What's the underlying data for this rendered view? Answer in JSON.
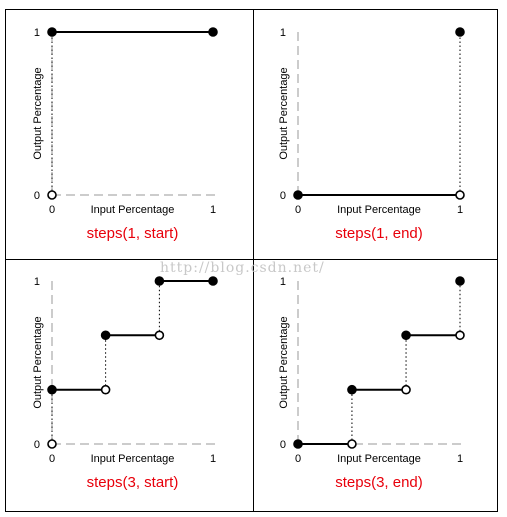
{
  "watermark": "http://blog.csdn.net/",
  "caption_color": "#e8000b",
  "panels": [
    {
      "id": "steps-1-start",
      "caption": "steps(1, start)",
      "x_label": "Input Percentage",
      "y_label": "Output Percentage",
      "x_ticks": [
        "0",
        "1"
      ],
      "y_ticks": [
        "0",
        "1"
      ],
      "segments": [
        [
          0,
          1,
          1
        ]
      ],
      "risers": [
        [
          0,
          0,
          1
        ]
      ],
      "points": [
        [
          0,
          0,
          "open"
        ],
        [
          0,
          1,
          "filled"
        ],
        [
          1,
          1,
          "filled"
        ]
      ]
    },
    {
      "id": "steps-1-end",
      "caption": "steps(1, end)",
      "x_label": "Input Percentage",
      "y_label": "Output Percentage",
      "x_ticks": [
        "0",
        "1"
      ],
      "y_ticks": [
        "0",
        "1"
      ],
      "segments": [
        [
          0,
          1,
          0
        ]
      ],
      "risers": [
        [
          1,
          0,
          1
        ]
      ],
      "points": [
        [
          0,
          0,
          "filled"
        ],
        [
          1,
          0,
          "open"
        ],
        [
          1,
          1,
          "filled"
        ]
      ]
    },
    {
      "id": "steps-3-start",
      "caption": "steps(3, start)",
      "x_label": "Input Percentage",
      "y_label": "Output Percentage",
      "x_ticks": [
        "0",
        "1"
      ],
      "y_ticks": [
        "0",
        "1"
      ],
      "segments": [
        [
          0,
          0.333,
          0.333
        ],
        [
          0.333,
          0.667,
          0.667
        ],
        [
          0.667,
          1,
          1
        ]
      ],
      "risers": [
        [
          0,
          0,
          0.333
        ],
        [
          0.333,
          0.333,
          0.667
        ],
        [
          0.667,
          0.667,
          1
        ]
      ],
      "points": [
        [
          0,
          0,
          "open"
        ],
        [
          0,
          0.333,
          "filled"
        ],
        [
          0.333,
          0.333,
          "open"
        ],
        [
          0.333,
          0.667,
          "filled"
        ],
        [
          0.667,
          0.667,
          "open"
        ],
        [
          0.667,
          1,
          "filled"
        ],
        [
          1,
          1,
          "filled"
        ]
      ]
    },
    {
      "id": "steps-3-end",
      "caption": "steps(3, end)",
      "x_label": "Input Percentage",
      "y_label": "Output Percentage",
      "x_ticks": [
        "0",
        "1"
      ],
      "y_ticks": [
        "0",
        "1"
      ],
      "segments": [
        [
          0,
          0.333,
          0
        ],
        [
          0.333,
          0.667,
          0.333
        ],
        [
          0.667,
          1,
          0.667
        ]
      ],
      "risers": [
        [
          0.333,
          0,
          0.333
        ],
        [
          0.667,
          0.333,
          0.667
        ],
        [
          1,
          0.667,
          1
        ]
      ],
      "points": [
        [
          0,
          0,
          "filled"
        ],
        [
          0.333,
          0,
          "open"
        ],
        [
          0.333,
          0.333,
          "filled"
        ],
        [
          0.667,
          0.333,
          "open"
        ],
        [
          0.667,
          0.667,
          "filled"
        ],
        [
          1,
          0.667,
          "open"
        ],
        [
          1,
          1,
          "filled"
        ]
      ]
    }
  ]
}
